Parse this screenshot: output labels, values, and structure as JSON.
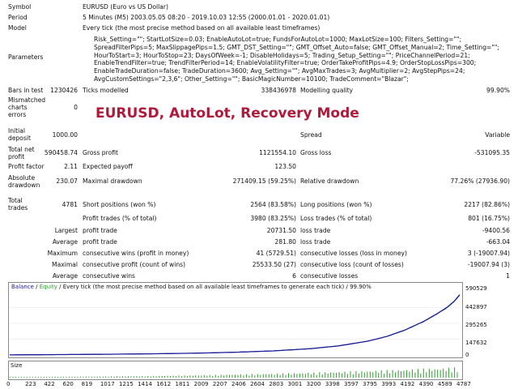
{
  "header": {
    "symbol_label": "Symbol",
    "symbol_value": "EURUSD (Euro vs US Dollar)",
    "period_label": "Period",
    "period_value": "5 Minutes (M5) 2003.05.05 08:20 - 2019.10.03 12:55 (2000.01.01 - 2020.01.01)",
    "model_label": "Model",
    "model_value": "Every tick (the most precise method based on all available least timeframes)",
    "parameters_label": "Parameters",
    "parameters_value": "Risk_Setting=\"\"; StartLotSize=0.03; EnableAutoLot=true; FundsForAutoLot=1000; MaxLotSize=100; Filters_Setting=\"\"; SpreadFilterPips=5; MaxSlippagePips=1.5; GMT_DST_Setting=\"\"; GMT_Offset_Auto=false; GMT_Offset_Manual=2; Time_Setting=\"\"; HourToStart=3; HourToStop=23; DaysOfWeek=-1; DisableHolidays=5; Trading_Setup_Setting=\"\"; PriceChannelPeriod=21; EnableTrendFilter=true; TrendFilterPeriod=14; EnableVolatilityFilter=true; OrderTakeProfitPips=4.9; OrderStopLossPips=300; EnableTradeDuration=false; TradeDuration=3600; Avg_Setting=\"\"; AvgMaxTrades=3; AvgMultiplier=2; AvgStepPips=24; AvgCustomSettings=\"2,3,6\"; Other_Setting=\"\"; BasicMagicNumber=10100; TradeComment=\"Blazar\";"
  },
  "overlay_title": "EURUSD, AutoLot, Recovery Mode",
  "stats": {
    "bars_label": "Bars in test",
    "bars_value": "1230426",
    "ticks_label": "Ticks modelled",
    "ticks_value": "338436978",
    "quality_label": "Modelling quality",
    "quality_value": "99.90%",
    "mismatch_label_1": "Mismatched",
    "mismatch_label_2": "charts",
    "mismatch_label_3": "errors",
    "mismatch_value": "0",
    "deposit_label_1": "Initial",
    "deposit_label_2": "deposit",
    "deposit_value": "1000.00",
    "spread_label": "Spread",
    "spread_value": "Variable",
    "net_label_1": "Total net",
    "net_label_2": "profit",
    "net_value": "590458.74",
    "gross_profit_label": "Gross profit",
    "gross_profit_value": "1121554.10",
    "gross_loss_label": "Gross loss",
    "gross_loss_value": "-531095.35",
    "pf_label": "Profit factor",
    "pf_value": "2.11",
    "ep_label": "Expected payoff",
    "ep_value": "123.50",
    "abs_dd_label_1": "Absolute",
    "abs_dd_label_2": "drawdown",
    "abs_dd_value": "230.07",
    "max_dd_label": "Maximal drawdown",
    "max_dd_value": "271409.15 (59.25%)",
    "rel_dd_label": "Relative drawdown",
    "rel_dd_value": "77.26% (27936.90)",
    "trades_label_1": "Total",
    "trades_label_2": "trades",
    "trades_value": "4781",
    "short_label": "Short positions (won %)",
    "short_value": "2564 (83.58%)",
    "long_label": "Long positions (won %)",
    "long_value": "2217 (82.86%)",
    "pt_label": "Profit trades (% of total)",
    "pt_value": "3980 (83.25%)",
    "lt_label": "Loss trades (% of total)",
    "lt_value": "801 (16.75%)",
    "largest_label": "Largest",
    "largest_pt_label": "profit trade",
    "largest_pt_value": "20731.50",
    "largest_lt_label": "loss trade",
    "largest_lt_value": "-9400.56",
    "average_label": "Average",
    "avg_pt_label": "profit trade",
    "avg_pt_value": "281.80",
    "avg_lt_label": "loss trade",
    "avg_lt_value": "-663.04",
    "maximum_label": "Maximum",
    "max_cw_label": "consecutive wins (profit in money)",
    "max_cw_value": "41 (5729.51)",
    "max_cl_label": "consecutive losses (loss in money)",
    "max_cl_value": "3 (-19007.94)",
    "maximal_label": "Maximal",
    "maximal_cw_label": "consecutive profit (count of wins)",
    "maximal_cw_value": "25533.50 (27)",
    "maximal_cl_label": "consecutive loss (count of losses)",
    "maximal_cl_value": "-19007.94 (3)",
    "average2_label": "Average",
    "avg_cw_label": "consecutive wins",
    "avg_cw_value": "6",
    "avg_cl_label": "consecutive losses",
    "avg_cl_value": "1"
  },
  "chart_data": {
    "type": "line",
    "legend_balance": "Balance",
    "legend_sep": "/",
    "legend_equity": "Equity",
    "legend_rest": "/ Every tick (the most precise method based on all available least timeframes to generate each tick) / 99.90%",
    "y_ticks": [
      "590529",
      "442897",
      "295265",
      "147632",
      "0"
    ],
    "ylim": [
      0,
      620000
    ],
    "size_label": "Size",
    "x_ticks": [
      "0",
      "223",
      "422",
      "620",
      "819",
      "1017",
      "1215",
      "1414",
      "1612",
      "1811",
      "2009",
      "2207",
      "2406",
      "2604",
      "2803",
      "3001",
      "3200",
      "3398",
      "3597",
      "3795",
      "3993",
      "4192",
      "4390",
      "4589",
      "4787"
    ],
    "trade_count": 4781,
    "balance_curve": [
      [
        0,
        1000
      ],
      [
        400,
        3000
      ],
      [
        800,
        5500
      ],
      [
        1200,
        8500
      ],
      [
        1600,
        12500
      ],
      [
        2000,
        18000
      ],
      [
        2400,
        27000
      ],
      [
        2800,
        40000
      ],
      [
        3200,
        62000
      ],
      [
        3500,
        90000
      ],
      [
        3800,
        135000
      ],
      [
        4000,
        180000
      ],
      [
        4200,
        245000
      ],
      [
        4400,
        330000
      ],
      [
        4550,
        410000
      ],
      [
        4650,
        470000
      ],
      [
        4720,
        525000
      ],
      [
        4781,
        590458
      ]
    ],
    "colors": {
      "balance": "#1c1c9c",
      "equity": "#2da02d",
      "volume": "#2da02d"
    }
  }
}
